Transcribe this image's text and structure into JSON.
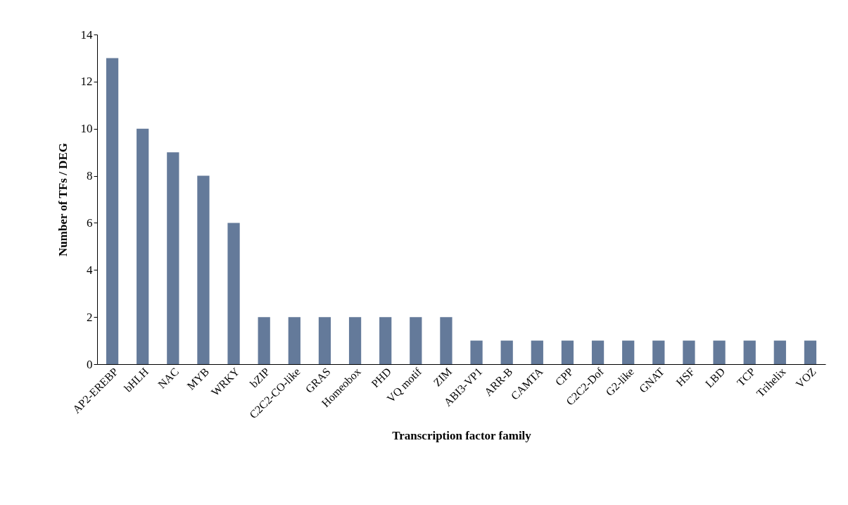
{
  "chart_data": {
    "type": "bar",
    "xlabel": "Transcription  factor family",
    "ylabel": "Number of TFs / DEG",
    "categories": [
      "AP2-EREBP",
      "bHLH",
      "NAC",
      "MYB",
      "WRKY",
      "bZIP",
      "C2C2-CO-like",
      "GRAS",
      "Homeobox",
      "PHD",
      "VQ motif",
      "ZIM",
      "ABI3-VP1",
      "ARR-B",
      "CAMTA",
      "CPP",
      "C2C2-Dof",
      "G2-like",
      "GNAT",
      "HSF",
      "LBD",
      "TCP",
      "Trihelix",
      "VOZ"
    ],
    "values": [
      13,
      10,
      9,
      8,
      6,
      2,
      2,
      2,
      2,
      2,
      2,
      2,
      1,
      1,
      1,
      1,
      1,
      1,
      1,
      1,
      1,
      1,
      1,
      1
    ],
    "color": "#647a9a",
    "ylim": [
      0,
      14
    ],
    "yticks": [
      0,
      2,
      4,
      6,
      8,
      10,
      12,
      14
    ]
  }
}
